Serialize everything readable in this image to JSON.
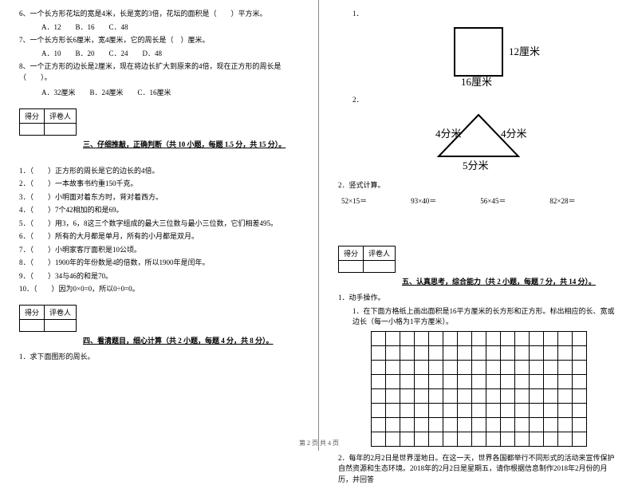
{
  "left": {
    "mc": [
      {
        "n": "6",
        "t": "一个长方形花坛的宽是4米，长是宽的3倍，花坛的面积是（　　）平方米。",
        "opts": "A．12　　B．16　　C．48"
      },
      {
        "n": "7",
        "t": "一个长方形长6厘米，宽4厘米，它的周长是（　）厘米。",
        "opts": "A．10　　B．20　　C．24　　D．48"
      },
      {
        "n": "8",
        "t": "一个正方形的边长是2厘米，现在将边长扩大到原来的4倍，现在正方形的周长是（　　）。",
        "opts": "A．32厘米　　B．24厘米　　C．16厘米"
      }
    ],
    "scoreLabels": {
      "a": "得分",
      "b": "评卷人"
    },
    "sec3": "三、仔细推敲，正确判断（共 10 小题，每题 1.5 分，共 15 分）。",
    "tf": [
      "（　　）正方形的周长是它的边长的4倍。",
      "（　　）一本故事书约重150千克。",
      "（　　）小明面对着东方时，背对着西方。",
      "（　　）7个42相加的和是69。",
      "（　　）用3，6，8这三个数字组成的最大三位数与最小三位数，它们相差495。",
      "（　　）所有的大月都是单月，所有的小月都是双月。",
      "（　　）小明家客厅面积是10公顷。",
      "（　　）1900年的年份数是4的倍数，所以1900年是闰年。",
      "（　　）34与46的和是70。",
      "（　　）因为0×0=0，所以0÷0=0。"
    ],
    "sec4": "四、看清题目，细心计算（共 2 小题，每题 4 分，共 8 分）。",
    "q4_1": "1．求下面图形的周长。"
  },
  "right": {
    "fig1": {
      "label": "1．",
      "side": "12厘米",
      "bottom": "16厘米",
      "stroke": "#000",
      "fill": "#fff",
      "w": 60,
      "h": 60
    },
    "fig2": {
      "label": "2．",
      "left": "4分米",
      "right": "4分米",
      "bottom": "5分米",
      "stroke": "#000"
    },
    "q2_2": "2．竖式计算。",
    "calc": [
      "52×15＝",
      "93×40＝",
      "56×45＝",
      "82×28＝"
    ],
    "scoreLabels": {
      "a": "得分",
      "b": "评卷人"
    },
    "sec5": "五、认真思考，综合能力（共 2 小题，每题 7 分，共 14 分）。",
    "q5_1": "1．动手操作。",
    "q5_1a": "1．在下面方格纸上画出面积是16平方厘米的长方形和正方形。标出相应的长、宽或边长（每一小格为1平方厘米）。",
    "grid": {
      "rows": 8,
      "cols": 15
    },
    "q5_2": "2．每年的2月2日是世界湿地日。在这一天，世界各国都举行不同形式的活动来宣传保护自然资源和生态环境。2018年的2月2日是星期五，请你根据信息制作2018年2月份的月历，并回答"
  },
  "footer": "第 2 页 共 4 页"
}
